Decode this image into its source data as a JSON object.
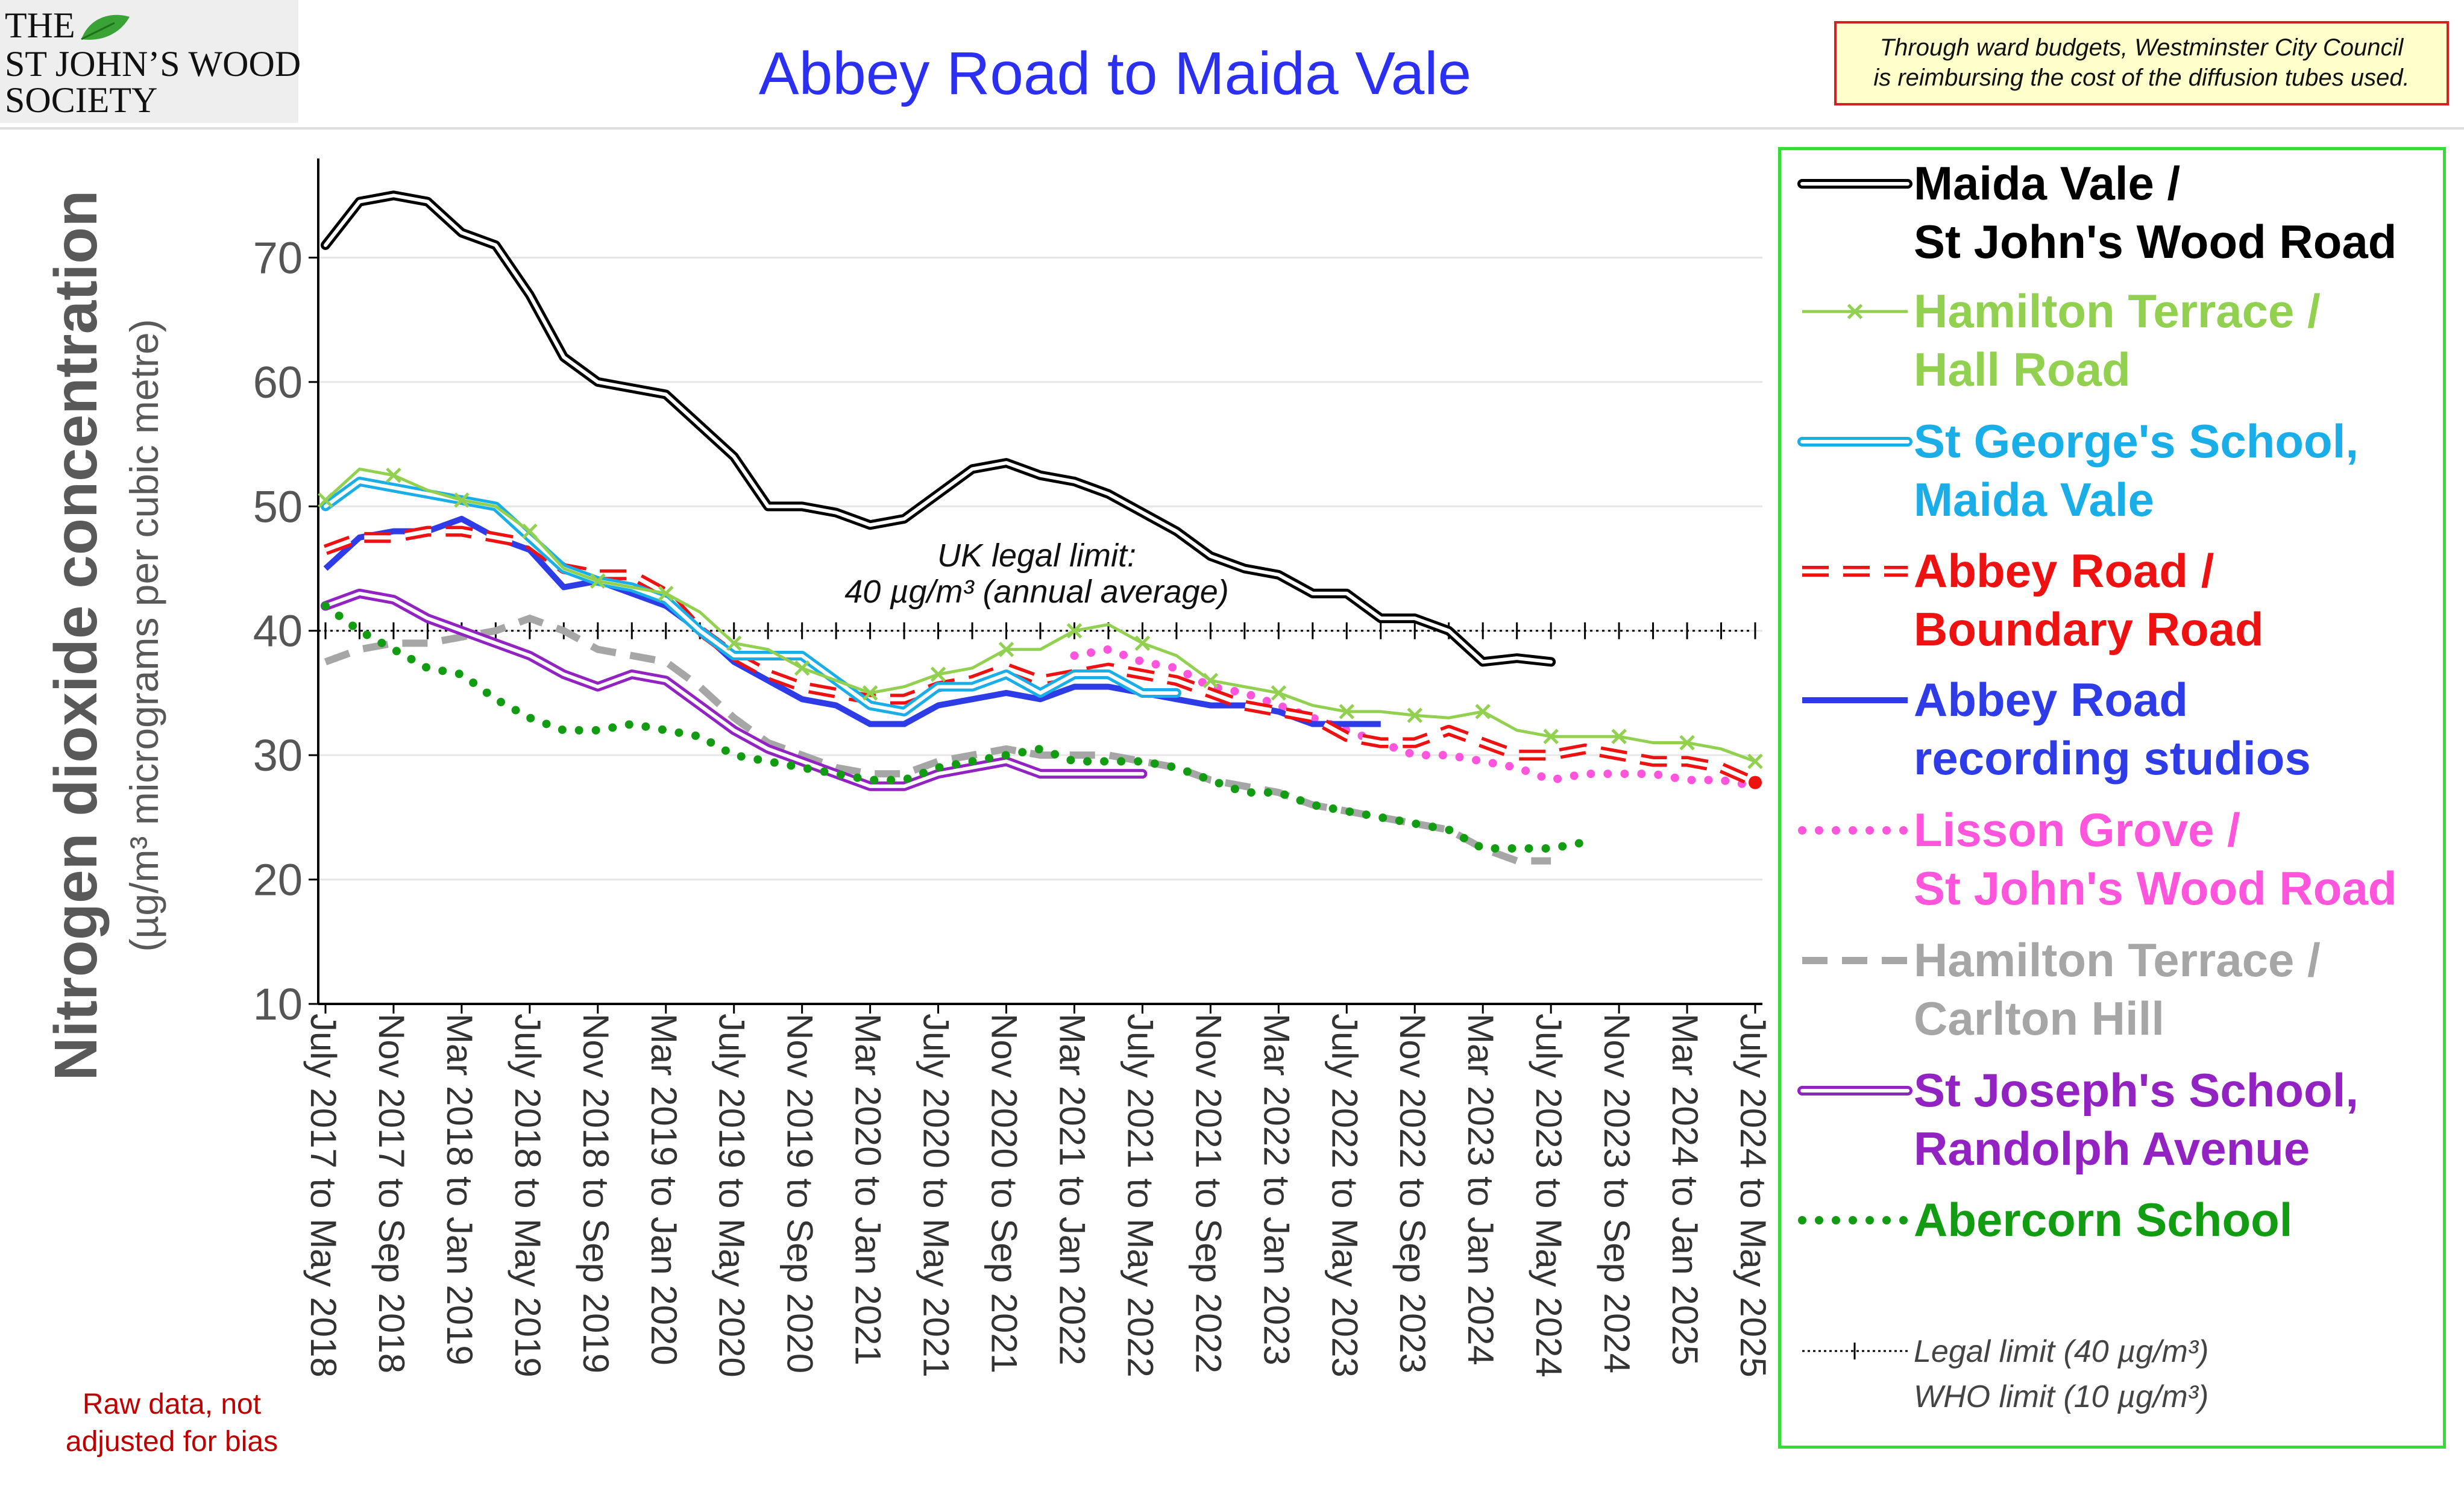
{
  "logo": {
    "line1": "THE",
    "line2": "ST JOHN’S WOOD",
    "line3": "SOCIETY"
  },
  "title": "Abbey Road to Maida Vale",
  "funding_note": {
    "line1": "Through ward budgets, Westminster City Council",
    "line2": "is reimbursing the cost of the diffusion tubes used."
  },
  "raw_note": {
    "line1": "Raw data, not",
    "line2": "adjusted for bias"
  },
  "limit_annotation": {
    "line1": "UK legal limit:",
    "line2": "40 µg/m³ (annual average)"
  },
  "legend_notes": {
    "legal": "Legal limit  (40 µg/m³)",
    "who": "WHO limit  (10 µg/m³)"
  },
  "chart_data": {
    "type": "line",
    "ylabel_main": "Nitrogen dioxide concentration",
    "ylabel_sub": "(µg/m³ micrograms per cubic metre)",
    "ylim": [
      10,
      77
    ],
    "yticks": [
      10,
      20,
      30,
      40,
      50,
      60,
      70
    ],
    "grid": "horizontal",
    "legend_position": "right",
    "x_count": 85,
    "categories": [
      "July 2017 to May 2018",
      "Nov 2017 to Sep 2018",
      "Mar 2018 to Jan 2019",
      "July 2018 to May 2019",
      "Nov 2018 to Sep 2019",
      "Mar 2019 to Jan 2020",
      "July 2019 to May 2020",
      "Nov 2019 to Sep 2020",
      "Mar 2020 to Jan 2021",
      "July 2020 to May 2021",
      "Nov 2020 to Sep 2021",
      "Mar 2021 to Jan 2022",
      "July 2021 to May 2022",
      "Nov 2021 to Sep 2022",
      "Mar 2022 to Jan 2023",
      "July 2022 to May 2023",
      "Nov 2022 to Sep 2023",
      "Mar 2023 to Jan 2024",
      "July 2023 to May 2024",
      "Nov 2023 to Sep 2024",
      "Mar 2024 to Jan 2025",
      "July 2024 to May 2025"
    ],
    "category_positions": [
      0,
      4,
      8,
      12,
      16,
      20,
      24,
      28,
      32,
      36,
      40,
      44,
      48,
      52,
      56,
      60,
      64,
      68,
      72,
      76,
      80,
      84
    ],
    "limits": {
      "legal": 40,
      "who": 10
    },
    "series": [
      {
        "name_lines": [
          "Maida Vale /",
          "St John's Wood Road"
        ],
        "color": "#000000",
        "style": "double",
        "x": [
          0,
          2,
          4,
          6,
          8,
          10,
          12,
          14,
          16,
          18,
          20,
          22,
          24,
          26,
          28,
          30,
          32,
          34,
          36,
          38,
          40,
          42,
          44,
          46,
          48,
          50,
          52,
          54,
          56,
          58,
          60,
          62,
          64,
          66,
          68,
          70,
          72
        ],
        "y": [
          71,
          74.5,
          75,
          74.5,
          72,
          71,
          67,
          62,
          60,
          59.5,
          59,
          56.5,
          54,
          50,
          50,
          49.5,
          48.5,
          49,
          51,
          53,
          53.5,
          52.5,
          52,
          51,
          49.5,
          48,
          46,
          45,
          44.5,
          43,
          43,
          41,
          41,
          40,
          37.5,
          37.8,
          37.5
        ]
      },
      {
        "name_lines": [
          "Hamilton Terrace /",
          "Hall Road"
        ],
        "color": "#92d050",
        "style": "cross",
        "x": [
          0,
          2,
          4,
          6,
          8,
          10,
          12,
          14,
          16,
          18,
          20,
          22,
          24,
          26,
          28,
          30,
          32,
          34,
          36,
          38,
          40,
          42,
          44,
          46,
          48,
          50,
          52,
          54,
          56,
          58,
          60,
          62,
          64,
          66,
          68,
          70,
          72,
          74,
          76,
          78,
          80,
          82,
          84
        ],
        "y": [
          50.5,
          53,
          52.5,
          51.3,
          50.5,
          50,
          48,
          45,
          44,
          43.5,
          43,
          41.5,
          39,
          38.5,
          37,
          36,
          35,
          35.5,
          36.5,
          37,
          38.5,
          38.5,
          40,
          40.5,
          39,
          38,
          36,
          35.5,
          35,
          34,
          33.5,
          33.5,
          33.2,
          33,
          33.5,
          32,
          31.5,
          31.5,
          31.5,
          31,
          31,
          30.5,
          29.5
        ]
      },
      {
        "name_lines": [
          "St George's School,",
          "Maida Vale"
        ],
        "color": "#19aee8",
        "style": "double",
        "x": [
          0,
          2,
          4,
          6,
          8,
          10,
          12,
          14,
          16,
          18,
          20,
          22,
          24,
          26,
          28,
          30,
          32,
          34,
          36,
          38,
          40,
          42,
          44,
          46,
          48,
          50
        ],
        "y": [
          50,
          52,
          51.5,
          51,
          50.5,
          50,
          47.5,
          45,
          44,
          43.5,
          42.5,
          40,
          38,
          38,
          38,
          36,
          34,
          33.5,
          35.5,
          35.5,
          36.5,
          35,
          36.5,
          36.5,
          35,
          35
        ]
      },
      {
        "name_lines": [
          "Abbey Road /",
          "Boundary Road"
        ],
        "color": "#ee1111",
        "style": "dashdouble",
        "x": [
          0,
          2,
          4,
          6,
          8,
          10,
          12,
          14,
          16,
          18,
          20,
          22,
          24,
          26,
          28,
          30,
          32,
          34,
          36,
          38,
          40,
          42,
          44,
          46,
          48,
          50,
          52,
          54,
          56,
          58,
          60,
          62,
          64,
          66,
          68,
          70,
          72,
          74,
          76,
          78,
          80,
          82,
          84
        ],
        "y": [
          46.5,
          47.5,
          47.5,
          48,
          48,
          47.5,
          47,
          45,
          44.5,
          44.5,
          43,
          40,
          38,
          36.5,
          35.5,
          35,
          34.5,
          34.5,
          35.5,
          36,
          37,
          36,
          36.5,
          37,
          36.5,
          36,
          35,
          34,
          33.5,
          33,
          31.5,
          31,
          31,
          32,
          31,
          30,
          30,
          30.5,
          30,
          29.5,
          29.5,
          29,
          27.8
        ]
      },
      {
        "name_lines": [
          "Abbey Road",
          "recording studios"
        ],
        "color": "#2e3ce8",
        "style": "solid",
        "x": [
          0,
          2,
          4,
          6,
          8,
          10,
          12,
          14,
          16,
          18,
          20,
          22,
          24,
          26,
          28,
          30,
          32,
          34,
          36,
          38,
          40,
          42,
          44,
          46,
          48,
          50,
          52,
          54,
          56,
          58,
          60,
          62
        ],
        "y": [
          45,
          47.5,
          48,
          48,
          49,
          47.5,
          46.5,
          43.5,
          44,
          43,
          42,
          40,
          37.5,
          36,
          34.5,
          34,
          32.5,
          32.5,
          34,
          34.5,
          35,
          34.5,
          35.5,
          35.5,
          35,
          34.5,
          34,
          34,
          33.5,
          32.5,
          32.5,
          32.5
        ]
      },
      {
        "name_lines": [
          "Lisson Grove /",
          "St John's Wood Road"
        ],
        "color": "#ff55dd",
        "style": "dotted",
        "x": [
          44,
          46,
          48,
          50,
          52,
          54,
          56,
          58,
          60,
          62,
          64,
          66,
          68,
          70,
          72,
          74,
          76,
          78,
          80,
          82,
          84
        ],
        "y": [
          38,
          38.5,
          37.5,
          37,
          35.5,
          35,
          34,
          33,
          32,
          31,
          30,
          30,
          29.5,
          29,
          28,
          28.5,
          28.5,
          28.5,
          28,
          28,
          27.5
        ]
      },
      {
        "name_lines": [
          "Hamilton Terrace /",
          "Carlton Hill"
        ],
        "color": "#a6a6a6",
        "style": "dashed",
        "x": [
          0,
          2,
          4,
          6,
          8,
          10,
          12,
          14,
          16,
          18,
          20,
          22,
          24,
          26,
          28,
          30,
          32,
          34,
          36,
          38,
          40,
          42,
          44,
          46,
          48,
          50,
          52,
          54,
          56,
          58,
          60,
          62,
          64,
          66,
          68,
          70,
          72
        ],
        "y": [
          37.5,
          38.5,
          39,
          39,
          39.5,
          40,
          41,
          40,
          38.5,
          38,
          37.5,
          35.5,
          33,
          31,
          30,
          29,
          28.5,
          28.5,
          29.5,
          30,
          30.5,
          30,
          30,
          30,
          29.5,
          29,
          28,
          27.5,
          27,
          26,
          25.5,
          25,
          24.5,
          24,
          22.5,
          21.5,
          21.5
        ]
      },
      {
        "name_lines": [
          "St Joseph's School,",
          "Randolph Avenue"
        ],
        "color": "#9222c2",
        "style": "double",
        "x": [
          0,
          2,
          4,
          6,
          8,
          10,
          12,
          14,
          16,
          18,
          20,
          22,
          24,
          26,
          28,
          30,
          32,
          34,
          36,
          38,
          40,
          42,
          44,
          46,
          48
        ],
        "y": [
          42,
          43,
          42.5,
          41,
          40,
          39,
          38,
          36.5,
          35.5,
          36.5,
          36,
          34,
          32,
          30.5,
          29.5,
          28.5,
          27.5,
          27.5,
          28.5,
          29,
          29.5,
          28.5,
          28.5,
          28.5,
          28.5
        ]
      },
      {
        "name_lines": [
          "Abercorn School"
        ],
        "color": "#129c12",
        "style": "dotted",
        "x": [
          0,
          2,
          4,
          6,
          8,
          10,
          12,
          14,
          16,
          18,
          20,
          22,
          24,
          26,
          28,
          30,
          32,
          34,
          36,
          38,
          40,
          42,
          44,
          46,
          48,
          50,
          52,
          54,
          56,
          58,
          60,
          62,
          64,
          66,
          68,
          70,
          72,
          74
        ],
        "y": [
          42,
          40,
          38.5,
          37,
          36.5,
          34.5,
          33,
          32,
          32,
          32.5,
          32,
          31.5,
          30,
          29.5,
          29,
          28.5,
          28,
          28,
          29,
          29.5,
          30,
          30.5,
          29.5,
          29.5,
          29.5,
          29,
          28,
          27,
          27,
          26,
          25.5,
          25,
          24.5,
          24,
          22.5,
          22.5,
          22.5,
          23
        ]
      }
    ]
  }
}
